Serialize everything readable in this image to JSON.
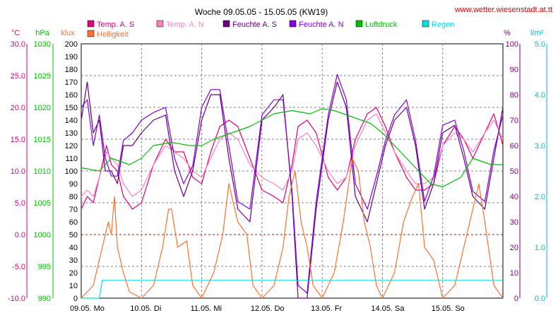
{
  "chart_data": {
    "type": "line",
    "title": "Woche 09.05.05 - 15.05.05 (KW19)",
    "source": "www.wetter.wiesenstadt.at.tt",
    "units": {
      "temp": "°C",
      "pressure": "hPa",
      "light": "klux",
      "humidity": "%",
      "rain": "l/m²"
    },
    "axes": {
      "temp": {
        "min": -10,
        "max": 30,
        "ticks": [
          "30.0",
          "25.0",
          "20.0",
          "15.0",
          "10.0",
          "5.0",
          "0.0",
          "-5.0",
          "-10.0"
        ],
        "color": "#e0007a"
      },
      "pressure": {
        "min": 990,
        "max": 1030,
        "ticks": [
          "1030",
          "1025",
          "1020",
          "1015",
          "1010",
          "1005",
          "1000",
          "995",
          "990"
        ],
        "color": "#00c000"
      },
      "light": {
        "min": 0,
        "max": 200,
        "ticks": [
          "200",
          "190",
          "180",
          "170",
          "160",
          "150",
          "140",
          "130",
          "120",
          "110",
          "100",
          "90",
          "80",
          "70",
          "60",
          "50",
          "40",
          "30",
          "20",
          "10",
          "0"
        ],
        "color": "#000000"
      },
      "humidity": {
        "min": 0,
        "max": 100,
        "ticks": [
          "100",
          "90",
          "80",
          "70",
          "60",
          "50",
          "40",
          "30",
          "20",
          "10",
          "0"
        ],
        "color": "#7a0080"
      },
      "rain": {
        "min": 0,
        "max": 5,
        "ticks": [
          "5.0",
          "4.0",
          "3.0",
          "2.0",
          "1.0",
          "0.0"
        ],
        "color": "#00c0c0"
      }
    },
    "x_ticks": [
      {
        "date": "09.05.",
        "day": "Mo"
      },
      {
        "date": "10.05.",
        "day": "Di"
      },
      {
        "date": "11.05.",
        "day": "Mi"
      },
      {
        "date": "12.05.",
        "day": "Do"
      },
      {
        "date": "13.05.",
        "day": "Fr"
      },
      {
        "date": "14.05.",
        "day": "Sa"
      },
      {
        "date": "15.05.",
        "day": "So"
      }
    ],
    "x_range_days": [
      0,
      7
    ],
    "grid": true,
    "legend": [
      {
        "name": "Temp. A. S",
        "color": "#e0007a"
      },
      {
        "name": "Temp. A. N",
        "color": "#ff80c0"
      },
      {
        "name": "Feuchte A. S",
        "color": "#6a0080"
      },
      {
        "name": "Feuchte A. N",
        "color": "#8000e0"
      },
      {
        "name": "Luftdruck",
        "color": "#00c000"
      },
      {
        "name": "Regen",
        "color": "#00e0e0"
      },
      {
        "name": "Helligkeit",
        "color": "#ff7030"
      }
    ],
    "series": [
      {
        "name": "Temp. A. S",
        "axis": "temp",
        "color": "#e0007a",
        "x": [
          0,
          0.1,
          0.2,
          0.3,
          0.42,
          0.5,
          0.6,
          0.7,
          0.85,
          1.0,
          1.2,
          1.4,
          1.55,
          1.7,
          1.85,
          2.0,
          2.15,
          2.3,
          2.45,
          2.6,
          2.8,
          3.0,
          3.2,
          3.35,
          3.5,
          3.6,
          3.75,
          3.9,
          4.1,
          4.25,
          4.4,
          4.55,
          4.75,
          4.9,
          5.05,
          5.2,
          5.4,
          5.55,
          5.7,
          5.85,
          6.0,
          6.2,
          6.35,
          6.5,
          6.7,
          6.85,
          7.0
        ],
        "y": [
          4,
          6,
          5,
          9,
          14,
          11,
          10,
          6,
          4,
          5,
          11,
          15,
          13,
          13,
          9,
          8,
          13,
          17,
          18,
          17,
          12,
          7,
          6,
          5,
          11,
          17,
          18,
          16,
          9,
          7,
          9,
          15,
          19,
          20,
          17,
          13,
          9,
          7,
          7,
          8,
          14,
          17,
          15,
          12,
          16,
          19,
          14
        ]
      },
      {
        "name": "Temp. A. N",
        "axis": "temp",
        "color": "#ff80c0",
        "x": [
          0,
          0.1,
          0.2,
          0.3,
          0.42,
          0.5,
          0.6,
          0.7,
          0.85,
          1.0,
          1.2,
          1.4,
          1.55,
          1.7,
          1.85,
          2.0,
          2.15,
          2.3,
          2.45,
          2.6,
          2.8,
          3.0,
          3.2,
          3.35,
          3.5,
          3.6,
          3.75,
          3.9,
          4.1,
          4.25,
          4.4,
          4.55,
          4.75,
          4.9,
          5.05,
          5.2,
          5.4,
          5.55,
          5.7,
          5.85,
          6.0,
          6.2,
          6.35,
          6.5,
          6.7,
          6.85,
          7.0
        ],
        "y": [
          6,
          7,
          6,
          9,
          13,
          12,
          11,
          8,
          6,
          7,
          11,
          14,
          13,
          12,
          10,
          9,
          12,
          15,
          16,
          15,
          11,
          9,
          8,
          7,
          10,
          15,
          16,
          14,
          10,
          8,
          9,
          14,
          18,
          19,
          16,
          13,
          10,
          8,
          8,
          9,
          14,
          16,
          15,
          13,
          16,
          18,
          15
        ]
      },
      {
        "name": "Feuchte A. S",
        "axis": "humidity",
        "color": "#6a0080",
        "x": [
          0,
          0.1,
          0.2,
          0.3,
          0.4,
          0.5,
          0.6,
          0.7,
          0.85,
          1.0,
          1.2,
          1.4,
          1.55,
          1.7,
          1.85,
          2.0,
          2.15,
          2.3,
          2.45,
          2.6,
          2.8,
          3.0,
          3.2,
          3.35,
          3.5,
          3.6,
          3.75,
          3.9,
          4.1,
          4.25,
          4.4,
          4.55,
          4.75,
          4.9,
          5.05,
          5.2,
          5.4,
          5.55,
          5.7,
          5.85,
          6.0,
          6.2,
          6.35,
          6.5,
          6.7,
          6.85,
          7.0
        ],
        "y": [
          70,
          85,
          65,
          70,
          50,
          50,
          45,
          60,
          60,
          65,
          70,
          72,
          50,
          40,
          50,
          70,
          80,
          80,
          55,
          35,
          30,
          70,
          75,
          80,
          40,
          0,
          0,
          35,
          70,
          85,
          75,
          40,
          30,
          45,
          60,
          70,
          75,
          60,
          35,
          45,
          65,
          68,
          55,
          40,
          35,
          55,
          75
        ]
      },
      {
        "name": "Feuchte A. N",
        "axis": "humidity",
        "color": "#8000e0",
        "x": [
          0,
          0.1,
          0.2,
          0.3,
          0.4,
          0.5,
          0.6,
          0.7,
          0.85,
          1.0,
          1.2,
          1.4,
          1.55,
          1.7,
          1.85,
          2.0,
          2.15,
          2.3,
          2.45,
          2.6,
          2.8,
          3.0,
          3.2,
          3.35,
          3.5,
          3.6,
          3.75,
          3.9,
          4.1,
          4.25,
          4.4,
          4.55,
          4.75,
          4.9,
          5.05,
          5.2,
          5.4,
          5.55,
          5.7,
          5.85,
          6.0,
          6.2,
          6.35,
          6.5,
          6.7,
          6.85,
          7.0
        ],
        "y": [
          75,
          78,
          60,
          72,
          55,
          48,
          48,
          62,
          65,
          70,
          73,
          75,
          55,
          45,
          52,
          75,
          82,
          82,
          60,
          38,
          35,
          72,
          78,
          78,
          42,
          5,
          2,
          38,
          72,
          88,
          78,
          45,
          35,
          48,
          62,
          72,
          78,
          62,
          38,
          48,
          68,
          70,
          58,
          42,
          38,
          58,
          72
        ]
      },
      {
        "name": "Luftdruck",
        "axis": "pressure",
        "color": "#00c000",
        "x": [
          0,
          0.3,
          0.5,
          0.8,
          1.0,
          1.2,
          1.5,
          1.8,
          2.0,
          2.2,
          2.5,
          2.8,
          3.0,
          3.2,
          3.5,
          3.8,
          4.0,
          4.2,
          4.5,
          4.8,
          5.0,
          5.2,
          5.5,
          5.8,
          6.0,
          6.3,
          6.5,
          6.8,
          7.0
        ],
        "y": [
          1010.5,
          1010,
          1012,
          1011,
          1012,
          1014,
          1014.5,
          1014,
          1014,
          1015,
          1016,
          1017,
          1018,
          1019,
          1019.5,
          1019,
          1019.8,
          1019.5,
          1018.5,
          1017.5,
          1016,
          1014,
          1011,
          1008,
          1007.5,
          1009,
          1012,
          1011,
          1011
        ]
      },
      {
        "name": "Regen",
        "axis": "rain",
        "color": "#00e0e0",
        "x": [
          0,
          0.3,
          0.35,
          7.0
        ],
        "y": [
          0,
          0,
          0.35,
          0.35
        ]
      },
      {
        "name": "Helligkeit",
        "axis": "light",
        "color": "#ff7030",
        "x": [
          0,
          0.2,
          0.35,
          0.45,
          0.5,
          0.55,
          0.6,
          0.7,
          0.8,
          1.0,
          1.2,
          1.35,
          1.45,
          1.5,
          1.6,
          1.75,
          1.85,
          2.0,
          2.2,
          2.35,
          2.45,
          2.5,
          2.6,
          2.75,
          2.85,
          3.0,
          3.2,
          3.35,
          3.45,
          3.55,
          3.65,
          3.75,
          3.85,
          4.0,
          4.2,
          4.35,
          4.5,
          4.6,
          4.7,
          4.8,
          4.9,
          5.0,
          5.2,
          5.35,
          5.5,
          5.6,
          5.7,
          5.85,
          6.0,
          6.2,
          6.35,
          6.5,
          6.6,
          6.7,
          6.85,
          7.0
        ],
        "y": [
          0,
          10,
          40,
          60,
          50,
          80,
          40,
          20,
          5,
          0,
          10,
          40,
          70,
          70,
          40,
          45,
          10,
          0,
          20,
          50,
          90,
          80,
          60,
          50,
          10,
          0,
          10,
          40,
          80,
          100,
          60,
          40,
          10,
          0,
          20,
          60,
          110,
          100,
          60,
          40,
          10,
          0,
          20,
          60,
          80,
          90,
          40,
          30,
          0,
          10,
          40,
          70,
          90,
          60,
          10,
          0
        ]
      }
    ]
  }
}
